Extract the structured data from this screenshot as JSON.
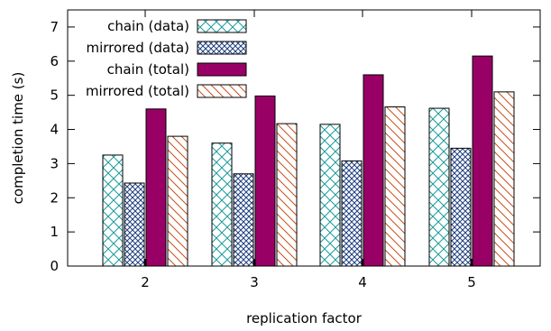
{
  "chart_data": {
    "type": "bar",
    "xlabel": "replication factor",
    "ylabel": "completion time (s)",
    "ylim": [
      0,
      7.5
    ],
    "yticks": [
      "0",
      "1",
      "2",
      "3",
      "4",
      "5",
      "6",
      "7"
    ],
    "categories": [
      "2",
      "3",
      "4",
      "5"
    ],
    "legend_position": "top-left",
    "grid": false,
    "series": [
      {
        "name": "chain (data)",
        "values": [
          3.25,
          3.6,
          4.15,
          4.62
        ],
        "color": "#1a9b9b",
        "pattern": "crosshatch-wide"
      },
      {
        "name": "mirrored (data)",
        "values": [
          2.43,
          2.7,
          3.08,
          3.45
        ],
        "color": "#1f3f7f",
        "pattern": "crosshatch-dense"
      },
      {
        "name": "chain (total)",
        "values": [
          4.6,
          4.98,
          5.6,
          6.15
        ],
        "color": "#990066",
        "pattern": "solid"
      },
      {
        "name": "mirrored (total)",
        "values": [
          3.8,
          4.17,
          4.66,
          5.1
        ],
        "color": "#c8501a",
        "pattern": "diagonal"
      }
    ]
  }
}
